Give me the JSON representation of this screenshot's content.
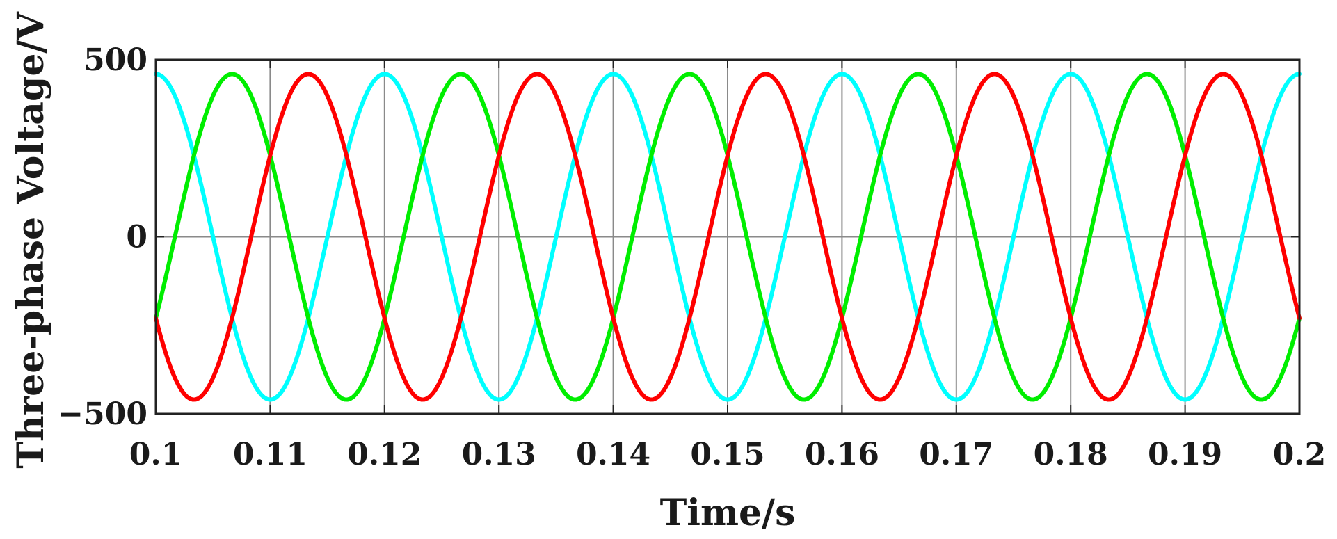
{
  "chart_data": {
    "type": "line",
    "title": "",
    "xlabel": "Time/s",
    "ylabel": "Three-phase Voltage/V",
    "xlim": [
      0.1,
      0.2
    ],
    "ylim": [
      -500,
      500
    ],
    "xticks": [
      "0.1",
      "0.11",
      "0.12",
      "0.13",
      "0.14",
      "0.15",
      "0.16",
      "0.17",
      "0.18",
      "0.19",
      "0.2"
    ],
    "yticks": [
      "500",
      "0",
      "−500"
    ],
    "grid": true,
    "legend": "none",
    "waveform": {
      "shape": "sine",
      "amplitude": 460,
      "frequency_hz": 50,
      "x_step": 0.00025
    },
    "series": [
      {
        "color": "#00ffff",
        "phase_deg": 90
      },
      {
        "color": "#00ee00",
        "phase_deg": -30
      },
      {
        "color": "#ff0000",
        "phase_deg": 210
      }
    ]
  }
}
